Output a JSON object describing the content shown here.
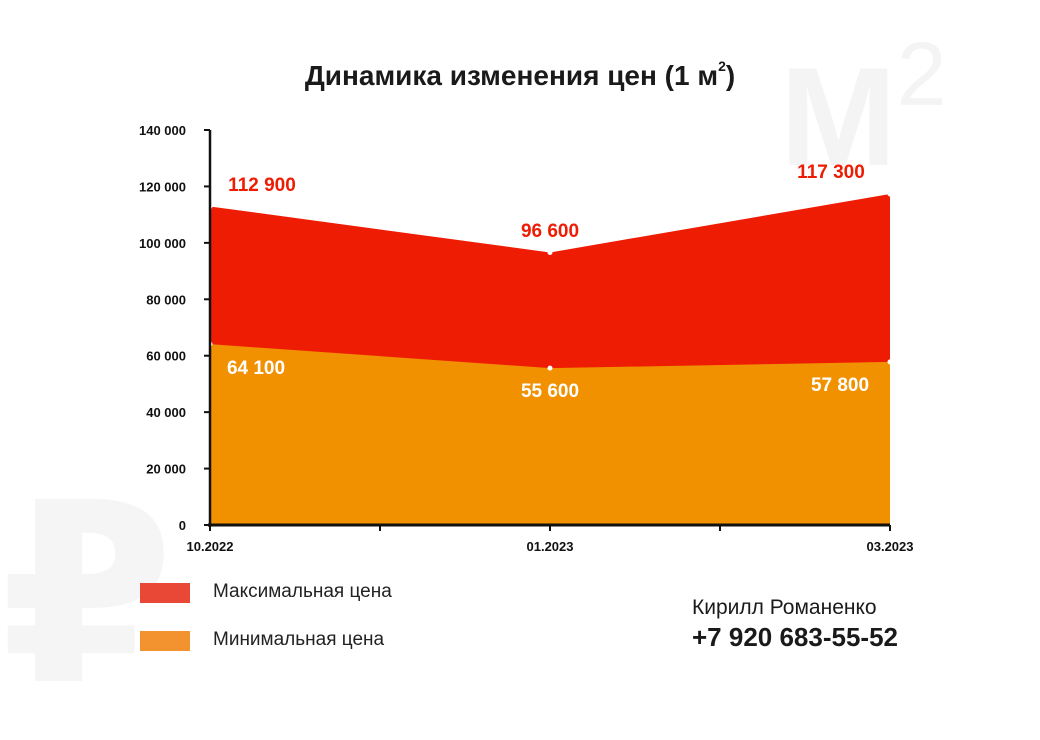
{
  "background": {
    "m2_letter": "М",
    "m2_power": "2",
    "ruble_sign": "₽"
  },
  "title": {
    "text": "Динамика изменения цен (1 м",
    "superscript": "2",
    "suffix": ")"
  },
  "chart_data": {
    "type": "area",
    "title": "Динамика изменения цен (1 м²)",
    "categories": [
      "10.2022",
      "01.2023",
      "03.2023"
    ],
    "ylim": [
      0,
      140000
    ],
    "y_ticks": [
      0,
      20000,
      40000,
      60000,
      80000,
      100000,
      120000,
      140000
    ],
    "y_tick_labels": [
      "0",
      "20 000",
      "40 000",
      "60 000",
      "80 000",
      "100 000",
      "120 000",
      "140 000"
    ],
    "grid": false,
    "legend_position": "bottom-left",
    "series": [
      {
        "name": "Максимальная цена",
        "color": "#ee1c03",
        "values": [
          112900,
          96600,
          117300
        ],
        "labels": [
          "112 900",
          "96 600",
          "117 300"
        ],
        "label_color": "#ee1c03"
      },
      {
        "name": "Минимальная цена",
        "color": "#f29100",
        "values": [
          64100,
          55600,
          57800
        ],
        "labels": [
          "64 100",
          "55 600",
          "57 800"
        ],
        "label_color": "#ffffff"
      }
    ]
  },
  "legend": {
    "items": [
      {
        "label": "Максимальная цена",
        "color": "#e84835"
      },
      {
        "label": "Минимальная цена",
        "color": "#f39330"
      }
    ]
  },
  "contact": {
    "name": "Кирилл Романенко",
    "phone": "+7 920 683-55-52"
  }
}
